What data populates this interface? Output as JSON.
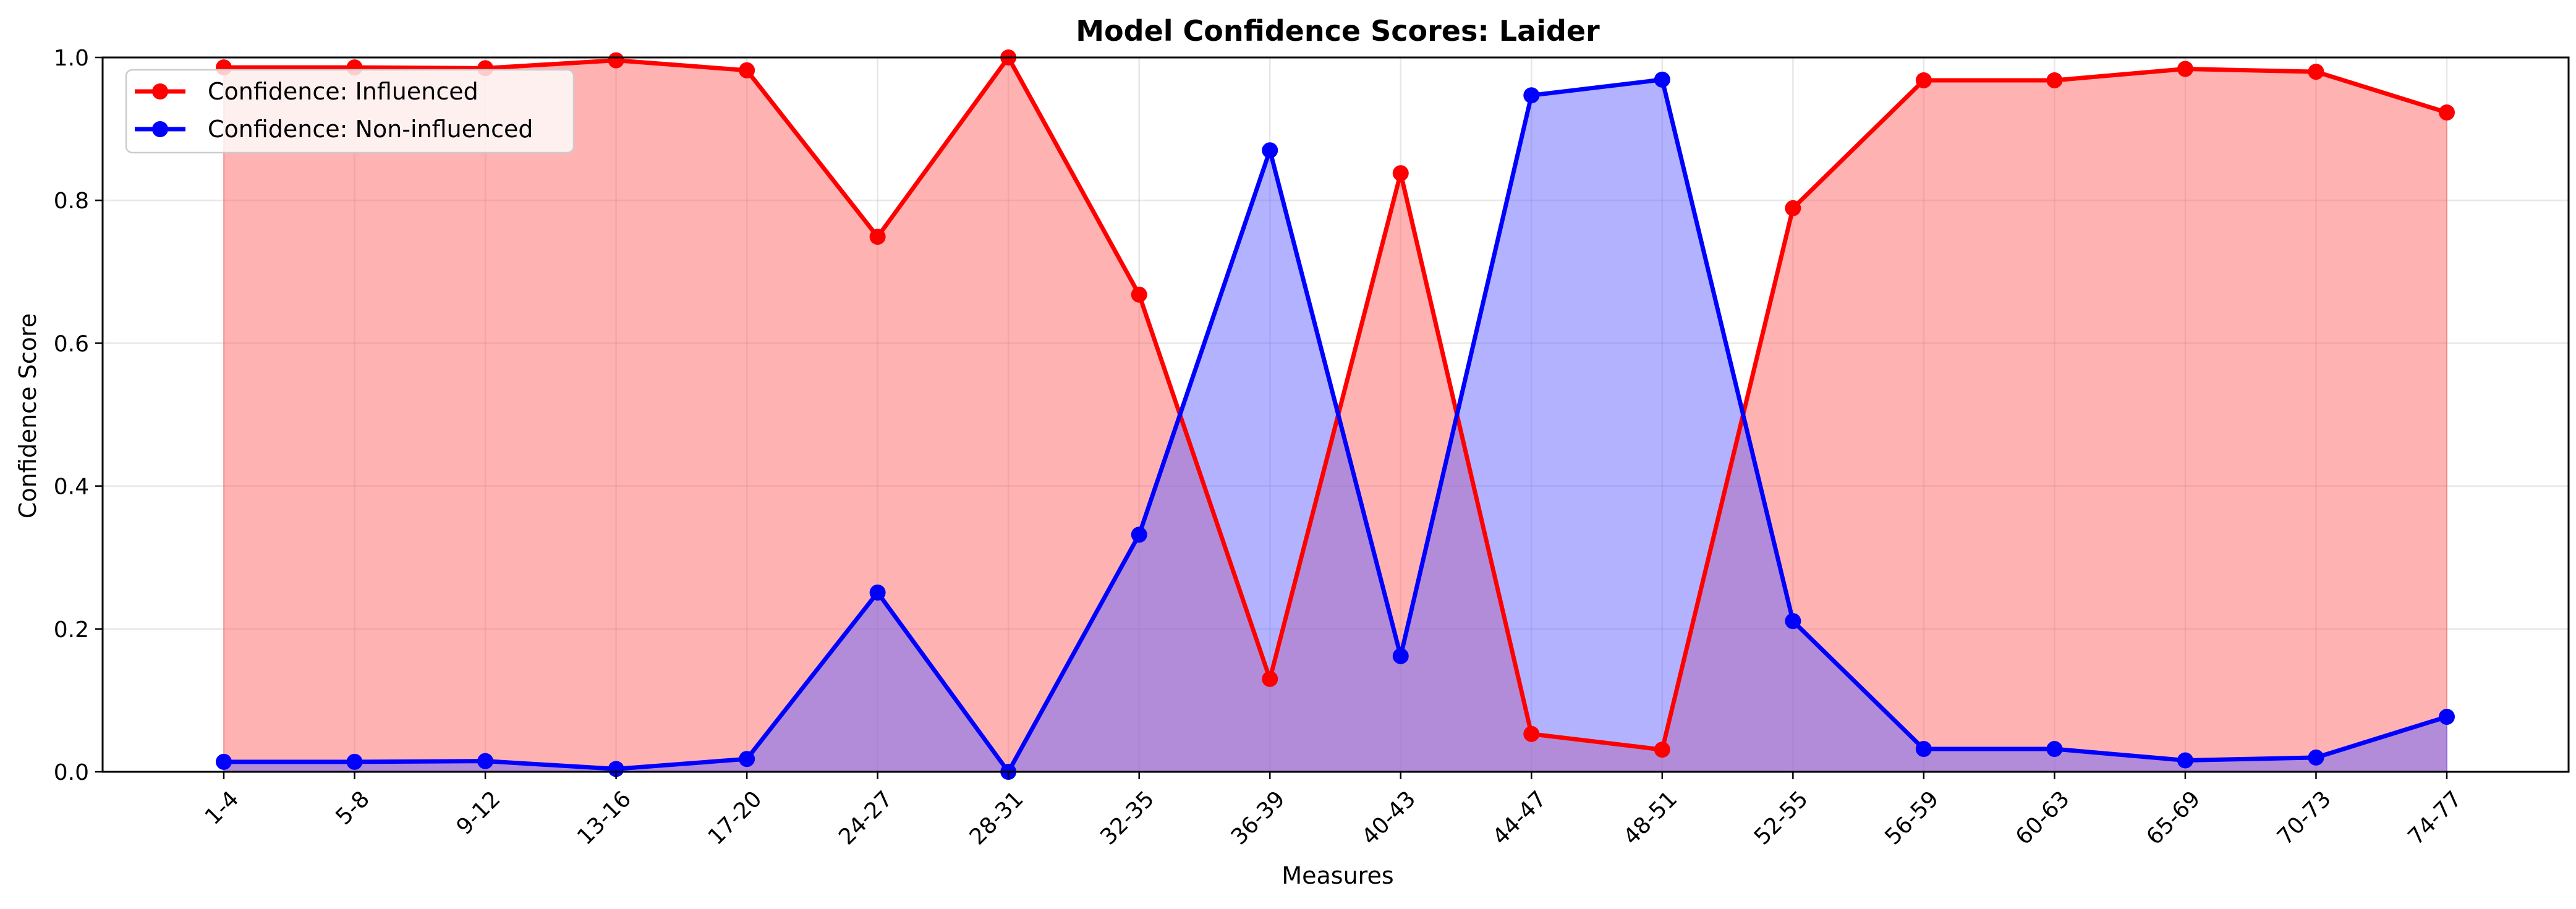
{
  "chart_data": {
    "type": "area",
    "title": "Model Confidence Scores: Laider",
    "xlabel": "Measures",
    "ylabel": "Confidence Score",
    "ylim": [
      0,
      1.0
    ],
    "yticks": [
      "0.0",
      "0.2",
      "0.4",
      "0.6",
      "0.8",
      "1.0"
    ],
    "grid": true,
    "legend_position": "upper-left",
    "categories": [
      "1-4",
      "5-8",
      "9-12",
      "13-16",
      "17-20",
      "24-27",
      "28-31",
      "32-35",
      "36-39",
      "40-43",
      "44-47",
      "48-51",
      "52-55",
      "56-59",
      "60-63",
      "65-69",
      "70-73",
      "74-77"
    ],
    "series": [
      {
        "name": "Confidence: Influenced",
        "color": "#ff0000",
        "fill_color": "#ff6666",
        "values": [
          0.986,
          0.986,
          0.985,
          0.996,
          0.982,
          0.749,
          1.0,
          0.668,
          0.13,
          0.838,
          0.053,
          0.031,
          0.789,
          0.968,
          0.968,
          0.984,
          0.98,
          0.923
        ]
      },
      {
        "name": "Confidence: Non-influenced",
        "color": "#0000ff",
        "fill_color": "#6666ff",
        "values": [
          0.014,
          0.014,
          0.015,
          0.004,
          0.018,
          0.251,
          0.0,
          0.332,
          0.87,
          0.162,
          0.947,
          0.969,
          0.211,
          0.032,
          0.032,
          0.016,
          0.02,
          0.077
        ]
      }
    ]
  }
}
